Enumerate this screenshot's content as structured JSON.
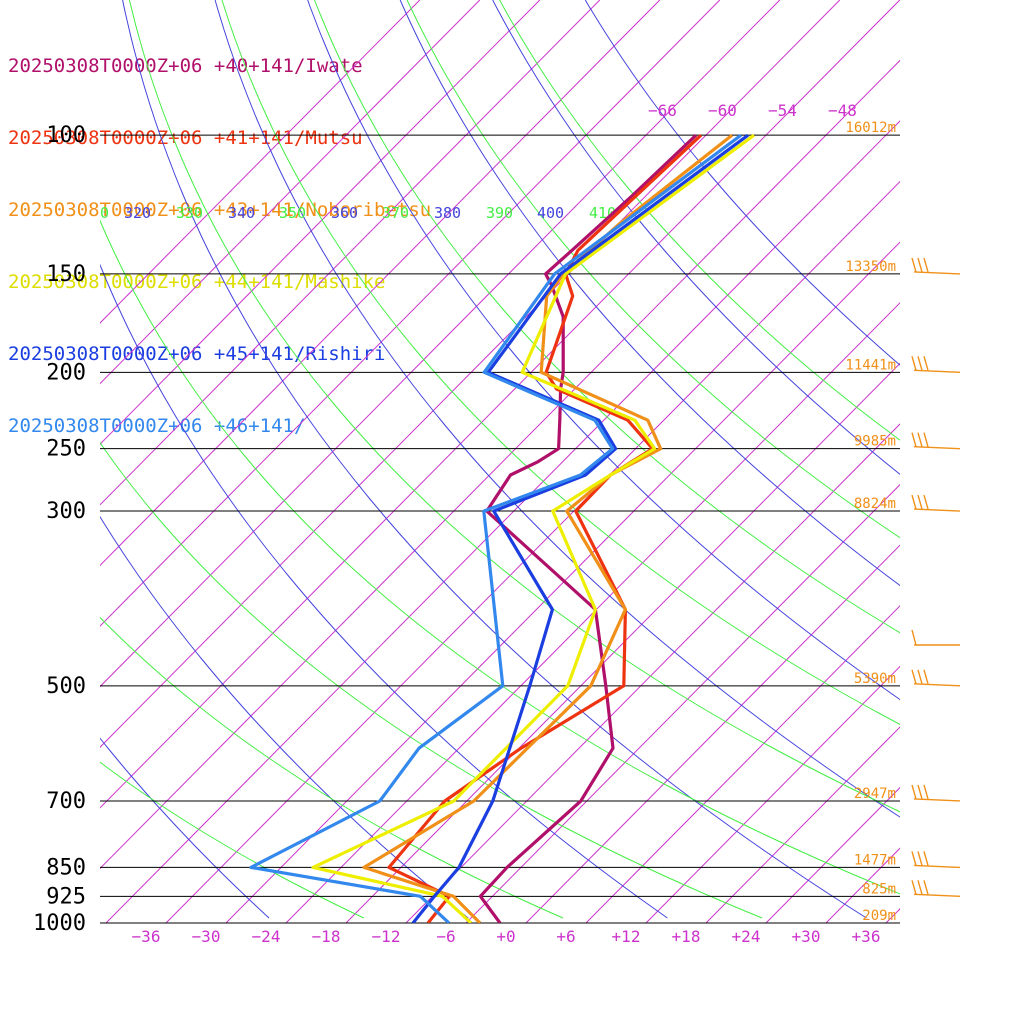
{
  "chart_data": {
    "type": "line",
    "title": "",
    "xlabel": "",
    "ylabel": "",
    "pressure_levels": [
      100,
      150,
      200,
      250,
      300,
      500,
      700,
      850,
      925,
      1000
    ],
    "pressure_labels": [
      "100",
      "150",
      "200",
      "250",
      "300",
      "500",
      "700",
      "850",
      "925",
      "1000"
    ],
    "height_labels": [
      {
        "p": 100,
        "label": "16012m"
      },
      {
        "p": 150,
        "label": "13350m"
      },
      {
        "p": 200,
        "label": "11441m"
      },
      {
        "p": 250,
        "label": "9985m"
      },
      {
        "p": 300,
        "label": "8824m"
      },
      {
        "p": 500,
        "label": "5390m"
      },
      {
        "p": 700,
        "label": "2947m"
      },
      {
        "p": 850,
        "label": "1477m"
      },
      {
        "p": 925,
        "label": "825m"
      },
      {
        "p": 1000,
        "label": "209m"
      }
    ],
    "x_ticks": [
      "−36",
      "−30",
      "−24",
      "−18",
      "−12",
      "−6",
      "+0",
      "+6",
      "+12",
      "+18",
      "+24",
      "+30",
      "+36"
    ],
    "x_tick_values": [
      -36,
      -30,
      -24,
      -18,
      -12,
      -6,
      0,
      6,
      12,
      18,
      24,
      30,
      36
    ],
    "xlim": [
      -40,
      40
    ],
    "upper_temp_labels": [
      "−66",
      "−60",
      "−54",
      "−48"
    ],
    "theta_labels": [
      {
        "label": "0",
        "color": "#44ee44"
      },
      {
        "label": "320",
        "color": "#4444dd"
      },
      {
        "label": "330",
        "color": "#44ee44"
      },
      {
        "label": "340",
        "color": "#4444dd"
      },
      {
        "label": "350",
        "color": "#44ee44"
      },
      {
        "label": "360",
        "color": "#4444dd"
      },
      {
        "label": "370",
        "color": "#44ee44"
      },
      {
        "label": "380",
        "color": "#4444dd"
      },
      {
        "label": "390",
        "color": "#44ee44"
      },
      {
        "label": "400",
        "color": "#4444dd"
      },
      {
        "label": "410",
        "color": "#44ee44"
      }
    ],
    "series": [
      {
        "name": "20250308T0000Z+06 +40+141/Iwate",
        "color": "#b0106a",
        "points": [
          [
            1000,
            -0.6
          ],
          [
            925,
            -5.2
          ],
          [
            850,
            -5.4
          ],
          [
            700,
            -4.6
          ],
          [
            600,
            -6.6
          ],
          [
            500,
            -13.5
          ],
          [
            400,
            -22.1
          ],
          [
            300,
            -42.7
          ],
          [
            270,
            -43.9
          ],
          [
            260,
            -42.5
          ],
          [
            250,
            -41.7
          ],
          [
            230,
            -44.4
          ],
          [
            210,
            -47.4
          ],
          [
            200,
            -48.8
          ],
          [
            170,
            -54.3
          ],
          [
            155,
            -58.6
          ],
          [
            150,
            -60.3
          ],
          [
            140,
            -60.0
          ],
          [
            120,
            -59.4
          ],
          [
            100,
            -59.0
          ]
        ]
      },
      {
        "name": "20250308T0000Z+06 +41+141/Mutsu",
        "color": "#ee3311",
        "points": [
          [
            1000,
            -7.8
          ],
          [
            925,
            -8.3
          ],
          [
            850,
            -17.2
          ],
          [
            700,
            -18.2
          ],
          [
            600,
            -15.8
          ],
          [
            500,
            -11.7
          ],
          [
            400,
            -19.1
          ],
          [
            300,
            -33.8
          ],
          [
            270,
            -33.9
          ],
          [
            250,
            -32.3
          ],
          [
            230,
            -37.6
          ],
          [
            210,
            -47.8
          ],
          [
            200,
            -50.5
          ],
          [
            160,
            -55.4
          ],
          [
            150,
            -58.3
          ],
          [
            140,
            -59.4
          ],
          [
            120,
            -59.0
          ],
          [
            100,
            -58.5
          ]
        ]
      },
      {
        "name": "20250308T0000Z+06 +43+141/Noboribetsu",
        "color": "#f09018",
        "points": [
          [
            1000,
            -2.6
          ],
          [
            925,
            -7.9
          ],
          [
            850,
            -19.7
          ],
          [
            700,
            -15.3
          ],
          [
            500,
            -15.0
          ],
          [
            400,
            -19.1
          ],
          [
            300,
            -34.7
          ],
          [
            270,
            -33.9
          ],
          [
            250,
            -31.5
          ],
          [
            230,
            -35.6
          ],
          [
            200,
            -51.0
          ],
          [
            160,
            -58.0
          ],
          [
            150,
            -58.5
          ],
          [
            130,
            -57.9
          ],
          [
            100,
            -55.4
          ]
        ]
      },
      {
        "name": "20250308T0000Z+06 +44+141/Mashike",
        "color": "#eeee00",
        "points": [
          [
            1000,
            -3.5
          ],
          [
            925,
            -9.0
          ],
          [
            850,
            -24.8
          ],
          [
            700,
            -17.3
          ],
          [
            500,
            -17.3
          ],
          [
            400,
            -22.1
          ],
          [
            300,
            -36.1
          ],
          [
            270,
            -33.9
          ],
          [
            250,
            -32.1
          ],
          [
            230,
            -36.9
          ],
          [
            200,
            -52.9
          ],
          [
            150,
            -58.3
          ],
          [
            100,
            -53.2
          ]
        ]
      },
      {
        "name": "20250308T0000Z+06 +45+141/Rishiri",
        "color": "#1a3ee0",
        "points": [
          [
            1000,
            -9.3
          ],
          [
            925,
            -9.8
          ],
          [
            850,
            -10.2
          ],
          [
            700,
            -13.4
          ],
          [
            500,
            -21.1
          ],
          [
            400,
            -26.4
          ],
          [
            300,
            -42.0
          ],
          [
            270,
            -36.4
          ],
          [
            250,
            -36.0
          ],
          [
            230,
            -40.5
          ],
          [
            200,
            -56.3
          ],
          [
            150,
            -58.8
          ],
          [
            100,
            -53.8
          ]
        ]
      },
      {
        "name": "20250308T0000Z+06 +46+141/",
        "color": "#3388ee",
        "points": [
          [
            1000,
            -5.7
          ],
          [
            925,
            -11.2
          ],
          [
            850,
            -31.0
          ],
          [
            700,
            -24.7
          ],
          [
            600,
            -26.0
          ],
          [
            500,
            -23.8
          ],
          [
            300,
            -43.0
          ],
          [
            270,
            -36.9
          ],
          [
            250,
            -36.3
          ],
          [
            230,
            -40.9
          ],
          [
            200,
            -56.7
          ],
          [
            150,
            -59.4
          ],
          [
            100,
            -54.5
          ]
        ]
      }
    ],
    "wind_barb_color": "#f09018",
    "line_colors": {
      "isotherm": "#cc33cc",
      "dry_adiabat": "#4444dd",
      "moist_adiabat": "#44ee44",
      "isobar": "#000000"
    },
    "grid": true
  }
}
